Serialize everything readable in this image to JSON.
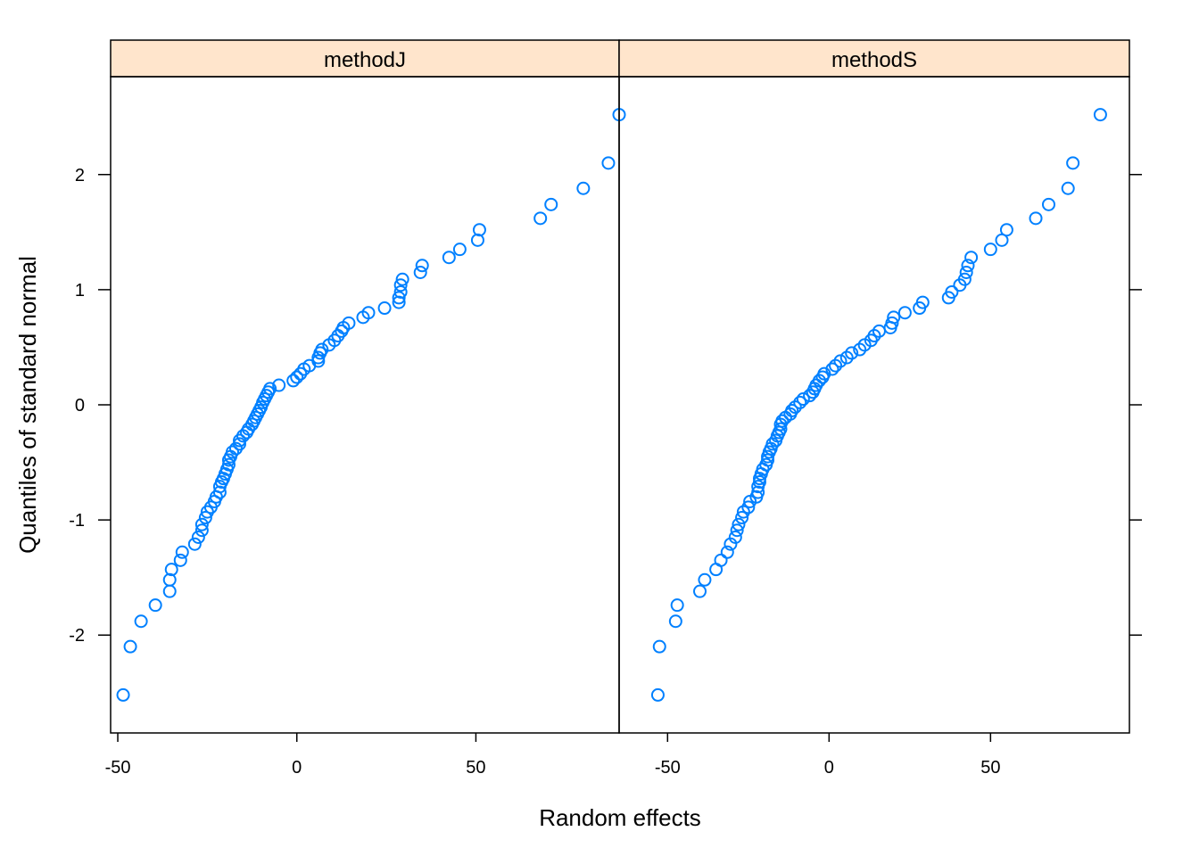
{
  "colors": {
    "point": "#0080ff",
    "strip": "#ffe5cc",
    "frame": "#000000"
  },
  "chart_data": {
    "type": "scatter",
    "layout": "two side-by-side panels with shared y axis",
    "xlabel": "Random effects",
    "ylabel": "Quantiles of standard normal",
    "ylim": [
      -2.85,
      2.85
    ],
    "yticks": [
      -2,
      -1,
      0,
      1,
      2
    ],
    "y_tick_sides": "left on left panel, right on right panel",
    "grid": false,
    "legend": "none",
    "panels": [
      {
        "strip": "methodJ",
        "xlim": [
          -52,
          90
        ],
        "xticks": [
          -50,
          0,
          50
        ],
        "x": [
          -48.5,
          -46.5,
          -43.5,
          -39.5,
          -35.5,
          -35.5,
          -35.0,
          -32.5,
          -32.0,
          -28.5,
          -27.5,
          -26.5,
          -26.5,
          -25.5,
          -25.0,
          -24.0,
          -23.0,
          -22.5,
          -21.5,
          -21.5,
          -21.0,
          -20.5,
          -20.0,
          -19.5,
          -19.0,
          -19.0,
          -18.5,
          -18.0,
          -17.0,
          -16.0,
          -16.0,
          -15.0,
          -14.0,
          -13.5,
          -12.5,
          -12.0,
          -11.5,
          -11.0,
          -10.5,
          -10.0,
          -9.5,
          -9.0,
          -8.5,
          -8.0,
          -7.5,
          -5.0,
          -1.0,
          0.0,
          1.0,
          2.0,
          3.5,
          6.0,
          6.0,
          6.5,
          7.0,
          9.0,
          10.5,
          11.5,
          12.5,
          13.0,
          14.5,
          18.5,
          20.0,
          24.5,
          28.5,
          28.5,
          29.0,
          29.0,
          29.5,
          34.5,
          35.0,
          42.5,
          45.5,
          50.5,
          51.0,
          68.0,
          71.0,
          80.0,
          87.0,
          90.0
        ],
        "y": [
          -2.52,
          -2.1,
          -1.88,
          -1.74,
          -1.62,
          -1.52,
          -1.43,
          -1.35,
          -1.28,
          -1.21,
          -1.15,
          -1.09,
          -1.04,
          -0.98,
          -0.93,
          -0.89,
          -0.84,
          -0.8,
          -0.76,
          -0.71,
          -0.67,
          -0.64,
          -0.6,
          -0.56,
          -0.52,
          -0.48,
          -0.45,
          -0.41,
          -0.38,
          -0.34,
          -0.31,
          -0.27,
          -0.24,
          -0.21,
          -0.17,
          -0.14,
          -0.11,
          -0.08,
          -0.05,
          -0.02,
          0.02,
          0.05,
          0.08,
          0.11,
          0.14,
          0.17,
          0.21,
          0.24,
          0.27,
          0.31,
          0.34,
          0.38,
          0.41,
          0.45,
          0.48,
          0.52,
          0.56,
          0.6,
          0.64,
          0.67,
          0.71,
          0.76,
          0.8,
          0.84,
          0.89,
          0.93,
          0.98,
          1.04,
          1.09,
          1.15,
          1.21,
          1.28,
          1.35,
          1.43,
          1.52,
          1.62,
          1.74,
          1.88,
          2.1,
          2.52
        ]
      },
      {
        "strip": "methodS",
        "xlim": [
          -65,
          93
        ],
        "xticks": [
          -50,
          0,
          50
        ],
        "x": [
          -53.0,
          -52.5,
          -47.5,
          -47.0,
          -40.0,
          -38.5,
          -35.0,
          -33.5,
          -31.5,
          -30.5,
          -29.0,
          -28.5,
          -28.0,
          -27.0,
          -26.5,
          -25.0,
          -24.5,
          -22.5,
          -22.0,
          -22.0,
          -21.5,
          -21.5,
          -21.0,
          -20.5,
          -19.5,
          -19.0,
          -19.0,
          -18.5,
          -18.0,
          -17.5,
          -16.5,
          -16.0,
          -15.5,
          -15.0,
          -15.0,
          -14.5,
          -13.5,
          -12.0,
          -11.5,
          -10.5,
          -9.0,
          -8.0,
          -6.0,
          -5.0,
          -4.5,
          -4.0,
          -3.0,
          -2.0,
          -1.5,
          1.0,
          2.0,
          3.5,
          5.5,
          7.0,
          9.5,
          11.0,
          13.0,
          14.0,
          15.5,
          19.0,
          19.5,
          20.0,
          23.5,
          28.0,
          29.0,
          37.0,
          38.0,
          40.5,
          42.0,
          42.5,
          43.0,
          44.0,
          50.0,
          53.5,
          55.0,
          64.0,
          68.0,
          74.0,
          75.5,
          84.0
        ],
        "y": [
          -2.52,
          -2.1,
          -1.88,
          -1.74,
          -1.62,
          -1.52,
          -1.43,
          -1.35,
          -1.28,
          -1.21,
          -1.15,
          -1.09,
          -1.04,
          -0.98,
          -0.93,
          -0.89,
          -0.84,
          -0.8,
          -0.76,
          -0.71,
          -0.67,
          -0.64,
          -0.6,
          -0.56,
          -0.52,
          -0.48,
          -0.45,
          -0.41,
          -0.38,
          -0.34,
          -0.31,
          -0.27,
          -0.24,
          -0.21,
          -0.17,
          -0.14,
          -0.11,
          -0.08,
          -0.05,
          -0.02,
          0.02,
          0.05,
          0.08,
          0.11,
          0.14,
          0.17,
          0.21,
          0.24,
          0.27,
          0.31,
          0.34,
          0.38,
          0.41,
          0.45,
          0.48,
          0.52,
          0.56,
          0.6,
          0.64,
          0.67,
          0.71,
          0.76,
          0.8,
          0.84,
          0.89,
          0.93,
          0.98,
          1.04,
          1.09,
          1.15,
          1.21,
          1.28,
          1.35,
          1.43,
          1.52,
          1.62,
          1.74,
          1.88,
          2.1,
          2.52
        ]
      }
    ]
  }
}
